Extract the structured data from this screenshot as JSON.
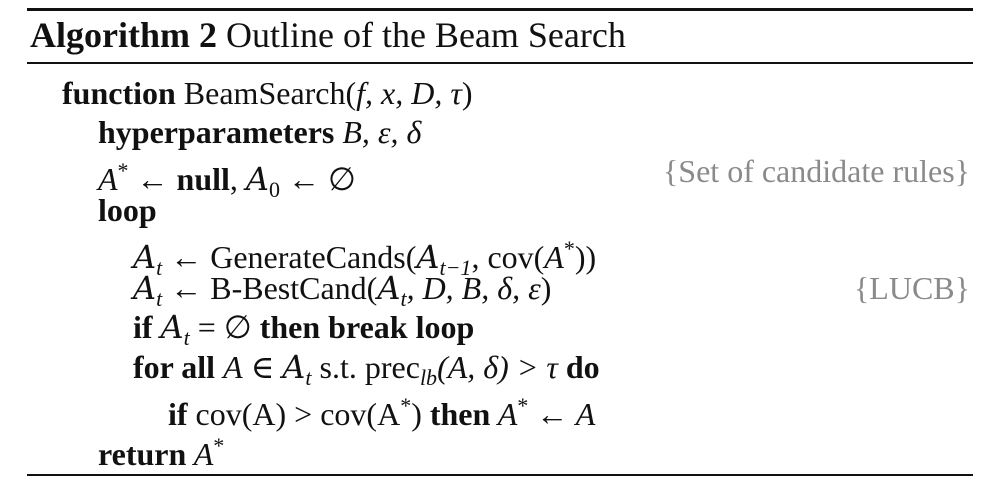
{
  "algorithm": {
    "label": "Algorithm 2",
    "title": "Outline of the Beam Search"
  },
  "lines": {
    "function": {
      "kw": "function",
      "name": "BeamSearch",
      "args": "f, x, D, τ"
    },
    "hyper": {
      "kw": "hyperparameters",
      "vars": "B, ε, δ"
    },
    "init": {
      "var": "A",
      "sup": "*",
      "arrow": "←",
      "null_kw": "null",
      "set": "A",
      "set_sub": "0",
      "empty": "∅",
      "comment": "{Set of candidate rules}"
    },
    "loop": {
      "kw": "loop"
    },
    "gen": {
      "lhs": "A",
      "lhs_sub": "t",
      "fn": "GenerateCands",
      "arg_set": "A",
      "arg_sub": "t−1",
      "cov": "cov",
      "cov_arg": "A",
      "cov_sup": "*"
    },
    "best": {
      "lhs": "A",
      "lhs_sub": "t",
      "fn": "B-BestCand",
      "arg_set": "A",
      "arg_sub": "t",
      "rest": ", D, B, δ, ε",
      "comment": "{LUCB}"
    },
    "ifbreak": {
      "kw_if": "if",
      "set": "A",
      "set_sub": "t",
      "eq": " = ∅ ",
      "kw_then": "then break loop"
    },
    "forall": {
      "kw": "for all",
      "var": "A",
      "in": " ∈ ",
      "set": "A",
      "set_sub": "t",
      "st": " s.t. ",
      "prec": "prec",
      "prec_sub": "lb",
      "prec_args": "(A, δ) > τ ",
      "kw_do": "do"
    },
    "ifcov": {
      "kw_if": "if",
      "cov1": " cov(A) > cov(A",
      "sup": "*",
      "close": ") ",
      "kw_then": "then",
      "assign": " A",
      "assign_sup": "*",
      "arrow": " ← A"
    },
    "ret": {
      "kw": "return",
      "var": " A",
      "sup": "*"
    }
  }
}
